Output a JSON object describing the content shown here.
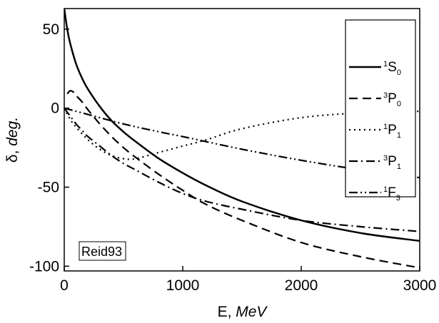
{
  "chart_data": {
    "type": "line",
    "title": "",
    "xlabel": "E, MeV",
    "xlabel_prefix": "E, ",
    "xlabel_unit": "MeV",
    "ylabel": "δ, deg.",
    "ylabel_prefix": "δ, ",
    "ylabel_unit": "deg.",
    "xlim": [
      0,
      3000
    ],
    "ylim": [
      -103,
      63
    ],
    "xticks": [
      0,
      1000,
      2000,
      3000
    ],
    "yticks": [
      50,
      0,
      -50,
      -100
    ],
    "grid": false,
    "legend_position": "top-right",
    "annotation": "Reid93",
    "series": [
      {
        "name": "1S0",
        "sup": "1",
        "main": "S",
        "sub": "0",
        "dash": "solid",
        "x": [
          0,
          25,
          50,
          100,
          150,
          200,
          300,
          400,
          500,
          600,
          800,
          1000,
          1200,
          1500,
          2000,
          2500,
          3000
        ],
        "y": [
          63,
          50,
          41,
          28,
          19,
          12,
          1,
          -8,
          -15,
          -21,
          -32,
          -41,
          -49,
          -59,
          -71,
          -79,
          -84
        ]
      },
      {
        "name": "3P0",
        "sup": "3",
        "main": "P",
        "sub": "0",
        "dash": "dash",
        "x": [
          25,
          50,
          80,
          100,
          150,
          200,
          300,
          400,
          500,
          600,
          800,
          1000,
          1200,
          1500,
          2000,
          2500,
          3000
        ],
        "y": [
          9,
          11,
          10,
          8,
          4,
          -1,
          -10,
          -18,
          -25,
          -31,
          -42,
          -52,
          -61,
          -71,
          -85,
          -94,
          -101
        ]
      },
      {
        "name": "1P1",
        "sup": "1",
        "main": "P",
        "sub": "1",
        "dash": "dot",
        "x": [
          0,
          50,
          100,
          200,
          300,
          400,
          500,
          600,
          800,
          1000,
          1200,
          1500,
          2000,
          2500,
          3000
        ],
        "y": [
          0,
          -7,
          -12,
          -20,
          -26,
          -30,
          -32,
          -32,
          -28,
          -24,
          -20,
          -13,
          -6,
          -3,
          -2
        ]
      },
      {
        "name": "3P1",
        "sup": "3",
        "main": "P",
        "sub": "1",
        "dash": "dashdot",
        "x": [
          0,
          50,
          100,
          150,
          200,
          300,
          400,
          500,
          600,
          800,
          1000,
          1200,
          1500,
          2000,
          2500,
          3000
        ],
        "y": [
          0,
          -5,
          -10,
          -14,
          -18,
          -24,
          -30,
          -35,
          -39,
          -47,
          -54,
          -59,
          -64,
          -71,
          -75,
          -78
        ]
      },
      {
        "name": "1F3",
        "sup": "1",
        "main": "F",
        "sub": "3",
        "dash": "dashdotdot",
        "x": [
          0,
          200,
          500,
          800,
          1000,
          1500,
          2000,
          2500,
          3000
        ],
        "y": [
          0,
          -4,
          -10,
          -15,
          -18,
          -26,
          -33,
          -39,
          -44
        ]
      }
    ]
  }
}
